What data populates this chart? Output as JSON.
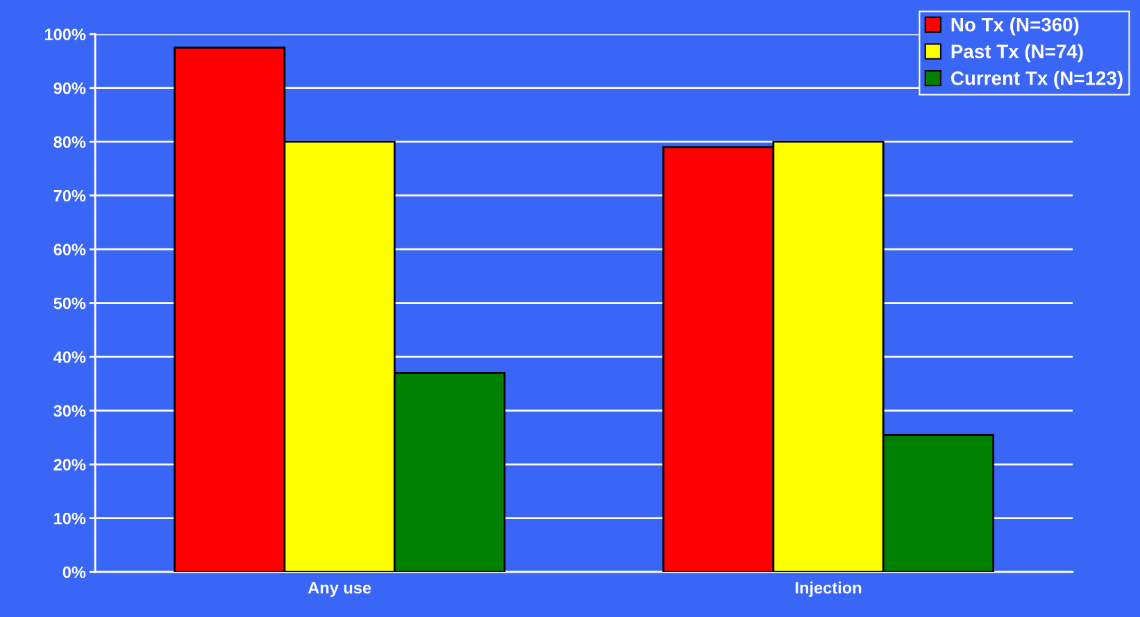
{
  "chart_data": {
    "type": "bar",
    "categories": [
      "Any use",
      "Injection"
    ],
    "series": [
      {
        "name": "No Tx (N=360)",
        "color": "#ff0000",
        "values": [
          97.5,
          79
        ]
      },
      {
        "name": "Past Tx (N=74)",
        "color": "#ffff00",
        "values": [
          80,
          80
        ]
      },
      {
        "name": "Current Tx (N=123)",
        "color": "#008000",
        "values": [
          37,
          25.5
        ]
      }
    ],
    "ylim": [
      0,
      100
    ],
    "yticks": [
      {
        "value": 0,
        "label": "0%"
      },
      {
        "value": 10,
        "label": "10%"
      },
      {
        "value": 20,
        "label": "20%"
      },
      {
        "value": 30,
        "label": "30%"
      },
      {
        "value": 40,
        "label": "40%"
      },
      {
        "value": 50,
        "label": "50%"
      },
      {
        "value": 60,
        "label": "60%"
      },
      {
        "value": 70,
        "label": "70%"
      },
      {
        "value": 80,
        "label": "80%"
      },
      {
        "value": 90,
        "label": "90%"
      },
      {
        "value": 100,
        "label": "100%"
      }
    ],
    "grid": "y",
    "legend": "top right"
  }
}
